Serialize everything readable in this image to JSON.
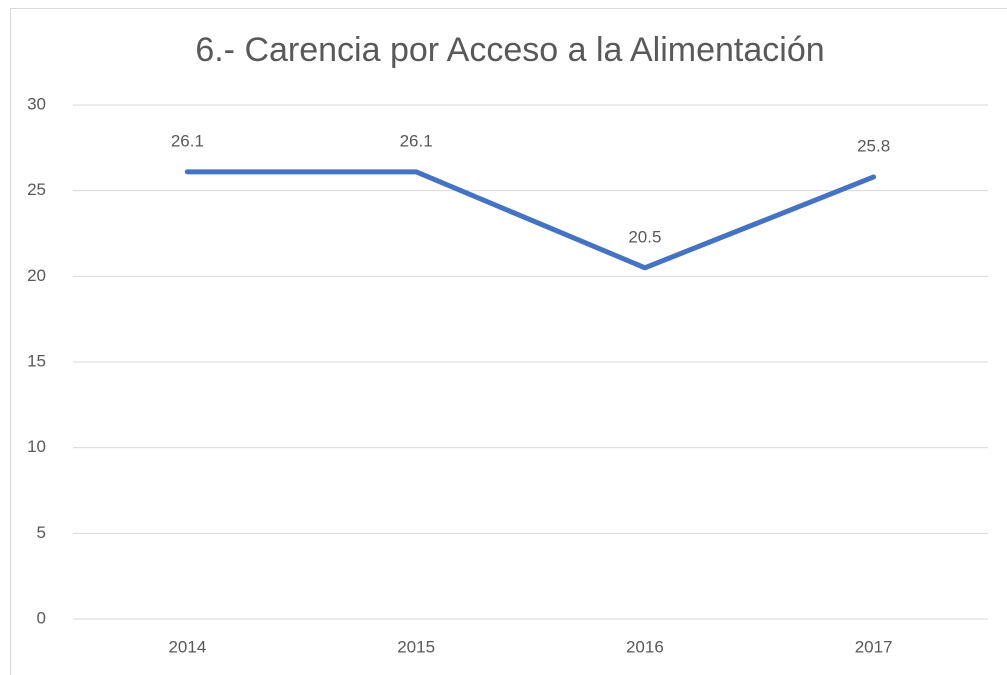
{
  "chart_data": {
    "type": "line",
    "title": "6.- Carencia por Acceso a la Alimentación",
    "categories": [
      "2014",
      "2015",
      "2016",
      "2017"
    ],
    "values": [
      26.1,
      26.1,
      20.5,
      25.8
    ],
    "color": "#4472c4",
    "ylim": [
      0,
      30
    ],
    "yticks": [
      0,
      5,
      10,
      15,
      20,
      25,
      30
    ],
    "grid": true,
    "data_labels": true
  }
}
